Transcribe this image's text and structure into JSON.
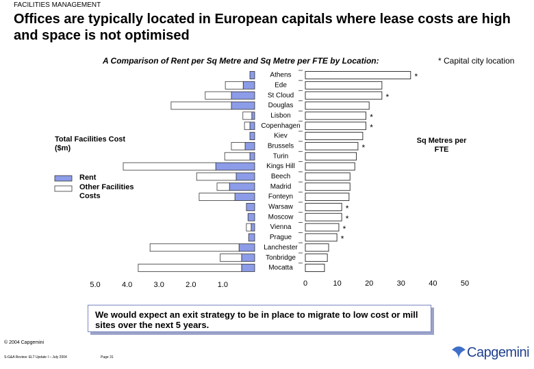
{
  "header": {
    "section": "FACILITIES MANAGEMENT",
    "title": "Offices are typically located in European capitals where lease costs are high and space is not optimised"
  },
  "chart_data": [
    {
      "type": "bar",
      "orientation": "horizontal",
      "direction": "reversed",
      "stacked": true,
      "xlabel": "Total Facilities Cost ($m)",
      "categories": [
        "Athens",
        "Ede",
        "St Cloud",
        "Douglas",
        "Lisbon",
        "Copenhagen",
        "Kiev",
        "Brussels",
        "Turin",
        "Kings Hill",
        "Beech",
        "Madrid",
        "Fonteyn",
        "Warsaw",
        "Moscow",
        "Vienna",
        "Prague",
        "Lanchester",
        "Tonbridge",
        "Mocatta"
      ],
      "series": [
        {
          "name": "Rent",
          "color": "#8c9ce8",
          "values": [
            0.15,
            0.36,
            0.73,
            0.73,
            0.09,
            0.15,
            0.15,
            0.3,
            0.15,
            1.22,
            0.58,
            0.79,
            0.62,
            0.26,
            0.21,
            0.11,
            0.19,
            0.49,
            0.41,
            0.41
          ]
        },
        {
          "name": "Other Facilities Costs",
          "color": "#ffffff",
          "values": [
            0,
            0.56,
            0.82,
            1.89,
            0.28,
            0.17,
            0,
            0.43,
            0.79,
            2.9,
            1.24,
            0.39,
            1.12,
            0,
            0,
            0.15,
            0,
            2.79,
            0.67,
            3.24
          ]
        }
      ],
      "xlim": [
        0,
        5
      ],
      "xticks": [
        {
          "value": 1,
          "label": "1.0"
        },
        {
          "value": 2,
          "label": "2.0"
        },
        {
          "value": 3,
          "label": "3.0"
        },
        {
          "value": 4,
          "label": "4.0"
        },
        {
          "value": 5,
          "label": "5.0"
        }
      ]
    },
    {
      "type": "bar",
      "orientation": "horizontal",
      "title": "A Comparison of Rent per Sq Metre and Sq Metre per FTE by Location:",
      "note": "* Capital city location",
      "xlabel": "Sq Metres per FTE",
      "color": "#ffffff",
      "values": [
        33,
        24,
        24,
        20,
        19,
        19,
        18,
        16.5,
        16,
        15.5,
        14,
        14,
        13.7,
        11.4,
        11.4,
        10.5,
        9.9,
        7.3,
        6.9,
        6
      ],
      "capital_marker": "*",
      "capital": [
        true,
        false,
        true,
        false,
        true,
        true,
        false,
        true,
        false,
        false,
        false,
        false,
        false,
        true,
        true,
        true,
        true,
        false,
        false,
        false
      ],
      "xlim": [
        0,
        50
      ],
      "xticks": [
        0,
        10,
        20,
        30,
        40,
        50
      ]
    }
  ],
  "callout": "We would expect an exit strategy to be in place to migrate to low cost or mill sites over the next 5 years.",
  "footer": {
    "copyright": "© 2004 Capgemini",
    "document": "S-G&A Review: ELT Update I – July 2004",
    "page": "Page 31",
    "logo": "Capgemini"
  }
}
